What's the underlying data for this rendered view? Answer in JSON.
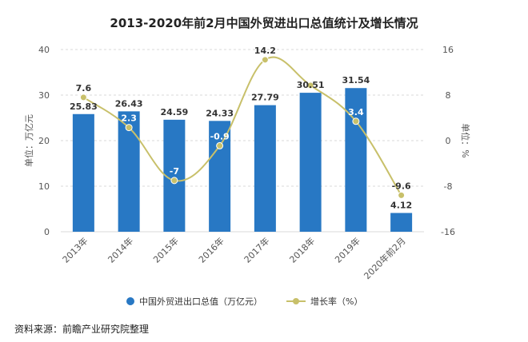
{
  "chart_data": {
    "type": "bar",
    "title": "2013-2020年前2月中国外贸进出口总值统计及增长情况",
    "categories": [
      "2013年",
      "2014年",
      "2015年",
      "2016年",
      "2017年",
      "2018年",
      "2019年",
      "2020年前2月"
    ],
    "series": [
      {
        "name": "中国外贸进出口总值（万亿元）",
        "type": "bar",
        "axis": "left",
        "color": "#2878c4",
        "values": [
          25.83,
          26.43,
          24.59,
          24.33,
          27.79,
          30.51,
          31.54,
          4.12
        ],
        "labels": [
          "25.83",
          "26.43",
          "24.59",
          "24.33",
          "27.79",
          "30.51",
          "31.54",
          "4.12"
        ]
      },
      {
        "name": "增长率（%）",
        "type": "line",
        "axis": "right",
        "color": "#c8c06a",
        "values": [
          7.6,
          2.3,
          -7,
          -0.9,
          14.2,
          9.7,
          3.4,
          -9.6
        ],
        "labels": [
          "7.6",
          "2.3",
          "-7",
          "-0.9",
          "14.2",
          "",
          "3.4",
          "-9.6"
        ]
      }
    ],
    "ylabel": "单位：万亿元",
    "y2label": "单位：%",
    "ylim": [
      0,
      40
    ],
    "yticks": [
      "0",
      "10",
      "20",
      "30",
      "40"
    ],
    "y2lim": [
      -16,
      16
    ],
    "y2ticks": [
      "-16",
      "-8",
      "0",
      "8",
      "16"
    ],
    "grid": true,
    "legend": "bottom"
  },
  "source": "资料来源：前瞻产业研究院整理"
}
